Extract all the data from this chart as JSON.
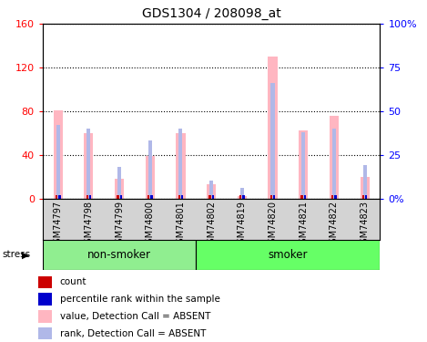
{
  "title": "GDS1304 / 208098_at",
  "samples": [
    "GSM74797",
    "GSM74798",
    "GSM74799",
    "GSM74800",
    "GSM74801",
    "GSM74802",
    "GSM74819",
    "GSM74820",
    "GSM74821",
    "GSM74822",
    "GSM74823"
  ],
  "value_absent": [
    81,
    60,
    18,
    39,
    60,
    13,
    2,
    130,
    62,
    76,
    20
  ],
  "rank_absent": [
    42,
    40,
    18,
    33,
    40,
    10,
    6,
    66,
    38,
    40,
    19
  ],
  "count_val": [
    2,
    1,
    1,
    1,
    1,
    1,
    1,
    2,
    1,
    1,
    1
  ],
  "count_rank": [
    2,
    1,
    1,
    1,
    1,
    1,
    1,
    2,
    1,
    1,
    1
  ],
  "ylim_left": [
    0,
    160
  ],
  "ylim_right": [
    0,
    100
  ],
  "yticks_left": [
    0,
    40,
    80,
    120,
    160
  ],
  "yticks_right": [
    0,
    25,
    50,
    75,
    100
  ],
  "ytick_labels_left": [
    "0",
    "40",
    "80",
    "120",
    "160"
  ],
  "ytick_labels_right": [
    "0%",
    "25",
    "50",
    "75",
    "100%"
  ],
  "color_value_absent": "#ffb6c1",
  "color_rank_absent": "#b0b8e8",
  "color_count": "#cc0000",
  "color_rank": "#0000cc",
  "bg_color": "#ffffff",
  "plot_bg": "#ffffff",
  "nonsmoker_color": "#90ee90",
  "smoker_color": "#66ff66",
  "tick_label_bg": "#d3d3d3",
  "nonsmoker_count": 5,
  "smoker_count": 6
}
